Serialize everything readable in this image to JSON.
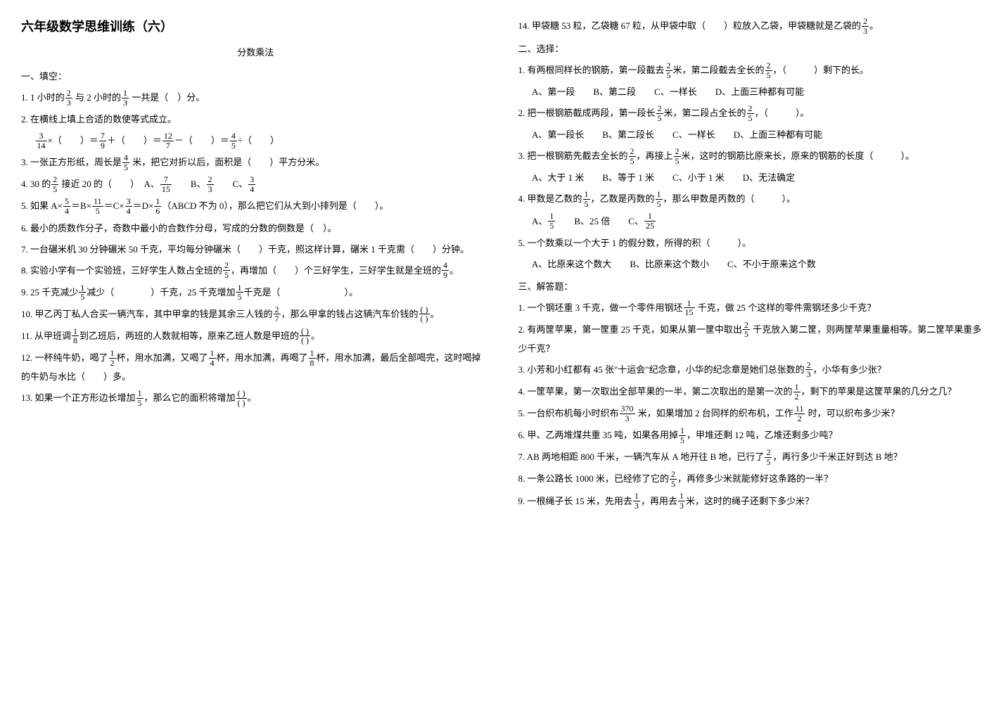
{
  "title": "六年级数学思维训练（六）",
  "subtitle": "分数乘法",
  "left": {
    "sec1_title": "一、填空：",
    "q1_a": "1.  1 小时的",
    "q1_b": " 与 2 小时的",
    "q1_c": " 一共是（　）分。",
    "q2": "2.  在横线上填上合适的数使等式成立。",
    "q2_line_a": "×（　　）＝",
    "q2_line_b": "＋（　　）＝",
    "q2_line_c": "－（　　）＝",
    "q2_line_d": "÷（　　）",
    "q3_a": "3.  一张正方形纸，周长是",
    "q3_b": " 米，把它对折以后，面积是（　　）平方分米。",
    "q4_a": "4.  30 的",
    "q4_b": " 接近 20 的（　　）　A、",
    "q4_c": "　　B、",
    "q4_d": "　　C、",
    "q5_a": "5.  如果 A×",
    "q5_b": "＝B×",
    "q5_c": "＝C×",
    "q5_d": "＝D×",
    "q5_e": "（ABCD 不为 0），那么把它们从大到小排列是（　　）。",
    "q6": "6.  最小的质数作分子，奇数中最小的合数作分母，写成的分数的倒数是（　）。",
    "q7": "7.  一台碾米机 30 分钟碾米 50 千克，平均每分钟碾米（　　）千克，照这样计算，碾米 1 千克需（　　）分钟。",
    "q8_a": "8.  实验小学有一个实验班，三好学生人数占全班的",
    "q8_b": "，再增加（　　）个三好学生，三好学生就是全班的",
    "q8_c": "。",
    "q9_a": "9.  25 千克减少",
    "q9_b": "减少（　　　　）千克，25 千克增加",
    "q9_c": "千克是（　　　　　　　）。",
    "q10_a": "10.  甲乙丙丁私人合买一辆汽车，其中甲拿的钱是其余三人钱的",
    "q10_b": "，那么甲拿的钱占这辆汽车价钱的",
    "q10_c": "。",
    "q11_a": "11.  从甲班调",
    "q11_b": "到乙班后，两班的人数就相等，原来乙班人数是甲班的",
    "q11_c": "。",
    "q12_a": "12.  一杯纯牛奶，喝了",
    "q12_b": "杯，用水加满，又喝了",
    "q12_c": "杯，用水加满，再喝了",
    "q12_d": "杯，用水加满，最后全部喝完，这时喝掉的牛奶与水比（　　）多。",
    "q13_a": "13.  如果一个正方形边长增加",
    "q13_b": "，那么它的面积将增加",
    "q13_c": "。"
  },
  "right": {
    "q14_a": "14.  甲袋糖 53 粒，乙袋糖 67 粒，从甲袋中取（　　）粒放入乙袋，甲袋糖就是乙袋的",
    "q14_b": "。",
    "sec2_title": "二、选择：",
    "r1_a": "1.  有两根同样长的钢筋，第一段截去",
    "r1_b": "米，第二段截去全长的",
    "r1_c": "，（　　　）剩下的长。",
    "r1_opts": "A、第一段　　B、第二段　　C、一样长　　D、上面三种都有可能",
    "r2_a": "2.  把一根钢筋截成两段，第一段长",
    "r2_b": "米，第二段占全长的",
    "r2_c": "，（　　　）。",
    "r2_opts": "A、第一段长　　B、第二段长　　C、一样长　　D、上面三种都有可能",
    "r3_a": "3. 把一根钢筋先截去全长的",
    "r3_b": "，再接上",
    "r3_c": "米，这时的钢筋比原来长，原来的钢筋的长度（　　　）。",
    "r3_opts": "A、大于 1 米　　B、等于 1 米　　C、小于 1 米　　D、无法确定",
    "r4_a": "4.  甲数是乙数的",
    "r4_b": "，乙数是丙数的",
    "r4_c": "，那么甲数是丙数的（　　　）。",
    "r4_optA": "A、",
    "r4_optB": "　　B、25 倍　　C、",
    "r5": "5.  一个数乘以一个大于 1 的假分数，所得的积（　　　）。",
    "r5_opts": "A、比原来这个数大　　B、比原来这个数小　　C、不小于原来这个数",
    "sec3_title": "三、解答题：",
    "s1_a": "1.  一个钢坯重 3 千克，做一个零件用钢坯",
    "s1_b": " 千克，做 25 个这样的零件需钢坯多少千克？",
    "s2_a": "2.  有两筐苹果，第一筐重 25 千克，如果从第一筐中取出",
    "s2_b": " 千克放入第二筐，则两筐苹果重量相等。第二筐苹果重多少千克？",
    "s3_a": "3.  小芳和小红都有 45 张\"十运会\"纪念章，小华的纪念章是她们总张数的",
    "s3_b": "，小华有多少张？",
    "s4_a": "4.  一筐苹果，第一次取出全部苹果的一半，第二次取出的是第一次的",
    "s4_b": "，剩下的苹果是这筐苹果的几分之几？",
    "s5_a": "5.  一台织布机每小时织布",
    "s5_b": " 米，如果增加 2 台同样的织布机，工作",
    "s5_c": " 时，可以织布多少米？",
    "s6_a": "6.  甲、乙两堆煤共重 35 吨，如果各用掉",
    "s6_b": "，甲堆还剩 12 吨，乙堆还剩多少吨？",
    "s7_a": "7.  AB 两地相距 800 千米，一辆汽车从 A 地开往 B 地，已行了",
    "s7_b": "，再行多少千米正好到达 B 地？",
    "s8_a": "8.  一条公路长 1000 米，已经修了它的",
    "s8_b": "，再修多少米就能修好这条路的一半？",
    "s9_a": "9.  一根绳子长 15 米，先用去",
    "s9_b": "，再用去",
    "s9_c": "米，这时的绳子还剩下多少米？"
  },
  "f": {
    "f2_3_n": "2",
    "f2_3_d": "3",
    "f1_3_n": "1",
    "f1_3_d": "3",
    "f3_14_n": "3",
    "f3_14_d": "14",
    "f7_9_n": "7",
    "f7_9_d": "9",
    "f12_7_n": "12",
    "f12_7_d": "7",
    "f4_5_n": "4",
    "f4_5_d": "5",
    "f2_5_n": "2",
    "f2_5_d": "5",
    "f7_15_n": "7",
    "f7_15_d": "15",
    "f3_4_n": "3",
    "f3_4_d": "4",
    "f5_4_n": "5",
    "f5_4_d": "4",
    "f11_5_n": "11",
    "f11_5_d": "5",
    "f1_6_n": "1",
    "f1_6_d": "6",
    "f4_9_n": "4",
    "f4_9_d": "9",
    "f1_5_n": "1",
    "f1_5_d": "5",
    "f2_7_n": "2",
    "f2_7_d": "7",
    "fpp_n": "( )",
    "fpp_d": "( )",
    "f1_8_n": "1",
    "f1_8_d": "8",
    "f1_2_n": "1",
    "f1_2_d": "2",
    "f1_4_n": "1",
    "f1_4_d": "4",
    "f1_25_n": "1",
    "f1_25_d": "25",
    "f1_15_n": "1",
    "f1_15_d": "15",
    "f370_3_n": "370",
    "f370_3_d": "3",
    "f11_2_n": "11",
    "f11_2_d": "2"
  }
}
